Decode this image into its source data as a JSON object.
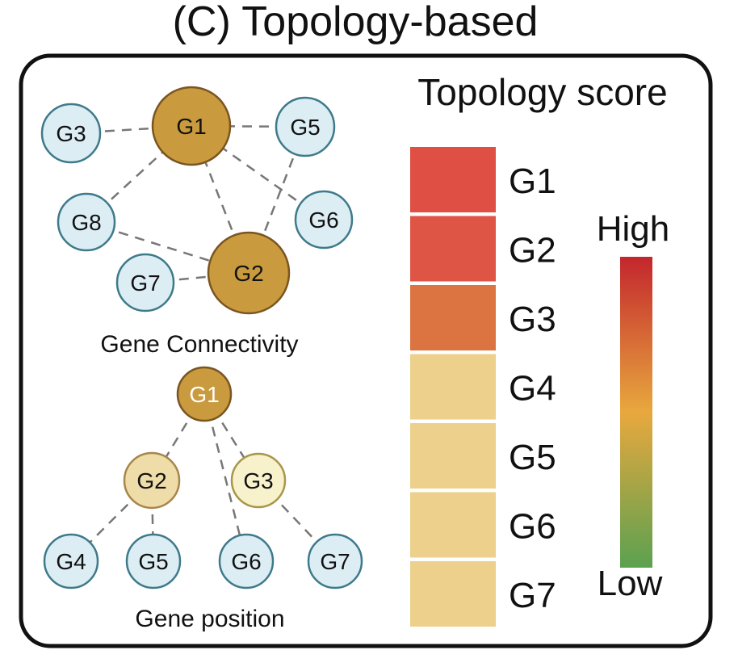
{
  "title": "(C) Topology-based",
  "connectivity": {
    "label": "Gene Connectivity",
    "nodes": [
      {
        "id": "G1",
        "role": "hub"
      },
      {
        "id": "G2",
        "role": "hub"
      },
      {
        "id": "G3",
        "role": "leaf"
      },
      {
        "id": "G5",
        "role": "leaf"
      },
      {
        "id": "G6",
        "role": "leaf"
      },
      {
        "id": "G7",
        "role": "leaf"
      },
      {
        "id": "G8",
        "role": "leaf"
      }
    ],
    "edges": [
      [
        "G3",
        "G1"
      ],
      [
        "G8",
        "G1"
      ],
      [
        "G1",
        "G5"
      ],
      [
        "G1",
        "G6"
      ],
      [
        "G5",
        "G2"
      ],
      [
        "G1",
        "G2"
      ],
      [
        "G8",
        "G2"
      ],
      [
        "G7",
        "G2"
      ]
    ]
  },
  "position": {
    "label": "Gene position",
    "nodes": [
      {
        "id": "G1",
        "level": 0
      },
      {
        "id": "G2",
        "level": 1
      },
      {
        "id": "G3",
        "level": 1
      },
      {
        "id": "G4",
        "level": 2
      },
      {
        "id": "G5",
        "level": 2
      },
      {
        "id": "G6",
        "level": 2
      },
      {
        "id": "G7",
        "level": 2
      }
    ],
    "edges": [
      [
        "G1",
        "G2"
      ],
      [
        "G1",
        "G3"
      ],
      [
        "G1",
        "G6"
      ],
      [
        "G2",
        "G4"
      ],
      [
        "G2",
        "G5"
      ],
      [
        "G3",
        "G7"
      ]
    ]
  },
  "score": {
    "title": "Topology score",
    "genes": [
      {
        "id": "G1",
        "color": "#df4f43"
      },
      {
        "id": "G2",
        "color": "#df5545"
      },
      {
        "id": "G3",
        "color": "#db7440"
      },
      {
        "id": "G4",
        "color": "#ecd08c"
      },
      {
        "id": "G5",
        "color": "#ecd08c"
      },
      {
        "id": "G6",
        "color": "#ecd08c"
      },
      {
        "id": "G7",
        "color": "#ecd08c"
      }
    ],
    "legend": {
      "high": "High",
      "low": "Low",
      "colors": [
        "#c3262d",
        "#e8a83e",
        "#5ba150"
      ]
    }
  },
  "colors": {
    "hub": "#c99a3e",
    "hub_stroke": "#7a5520",
    "leaf": "#dcedf4",
    "leaf_stroke": "#3e7a8a",
    "tree_l1a": "#efdda9",
    "tree_l1b": "#f7f2cc"
  }
}
